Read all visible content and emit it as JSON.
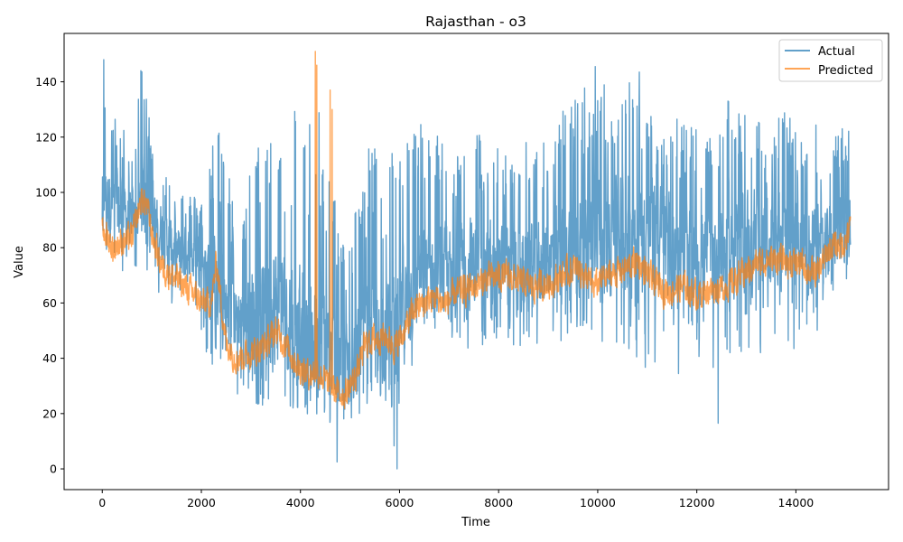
{
  "chart_data": {
    "type": "line",
    "title": "Rajasthan - o3",
    "xlabel": "Time",
    "ylabel": "Value",
    "xlim": [
      -770,
      15870
    ],
    "ylim": [
      -7.5,
      157.5
    ],
    "xticks": [
      0,
      2000,
      4000,
      6000,
      8000,
      10000,
      12000,
      14000
    ],
    "yticks": [
      0,
      20,
      40,
      60,
      80,
      100,
      120,
      140
    ],
    "grid": false,
    "legend_position": "top-right",
    "n_points": 15100,
    "series": [
      {
        "name": "Actual",
        "color": "#1f77b4",
        "opacity": 0.7,
        "x": [
          0,
          100,
          200,
          400,
          600,
          800,
          1000,
          1200,
          1400,
          1600,
          1800,
          2000,
          2200,
          2300,
          2500,
          2700,
          3000,
          3300,
          3500,
          3700,
          3900,
          4100,
          4300,
          4500,
          4700,
          4900,
          5100,
          5300,
          5500,
          5700,
          5900,
          6100,
          6300,
          6500,
          6700,
          6900,
          7200,
          7500,
          7800,
          8100,
          8400,
          8700,
          9000,
          9300,
          9600,
          9900,
          10200,
          10500,
          10800,
          11100,
          11400,
          11700,
          12000,
          12300,
          12600,
          12900,
          13200,
          13500,
          13800,
          14100,
          14400,
          14700,
          15000,
          15100
        ],
        "mid": [
          95,
          98,
          95,
          92,
          90,
          95,
          90,
          86,
          80,
          78,
          76,
          75,
          72,
          60,
          55,
          55,
          56,
          58,
          60,
          57,
          52,
          48,
          45,
          40,
          38,
          38,
          40,
          44,
          46,
          48,
          44,
          58,
          65,
          70,
          72,
          70,
          72,
          74,
          75,
          74,
          73,
          75,
          76,
          78,
          80,
          82,
          84,
          86,
          88,
          84,
          78,
          76,
          74,
          76,
          80,
          82,
          84,
          83,
          82,
          82,
          80,
          82,
          88,
          90
        ],
        "low": [
          76,
          75,
          70,
          70,
          72,
          74,
          68,
          62,
          58,
          55,
          50,
          45,
          38,
          30,
          28,
          25,
          24,
          22,
          22,
          20,
          20,
          18,
          18,
          16,
          10,
          15,
          18,
          20,
          22,
          20,
          5,
          30,
          38,
          42,
          40,
          38,
          40,
          42,
          45,
          44,
          42,
          44,
          46,
          45,
          48,
          45,
          44,
          42,
          40,
          30,
          32,
          35,
          35,
          30,
          40,
          38,
          42,
          40,
          40,
          42,
          48,
          50,
          60,
          70
        ],
        "high": [
          145,
          138,
          128,
          126,
          115,
          144,
          128,
          110,
          105,
          103,
          100,
          97,
          115,
          130,
          120,
          85,
          110,
          125,
          135,
          120,
          135,
          125,
          135,
          120,
          100,
          80,
          95,
          115,
          120,
          110,
          120,
          120,
          125,
          128,
          123,
          120,
          118,
          123,
          120,
          115,
          117,
          120,
          122,
          130,
          138,
          145,
          138,
          140,
          144,
          128,
          133,
          128,
          123,
          119,
          134,
          128,
          132,
          127,
          129,
          124,
          126,
          120,
          125,
          122
        ],
        "extremes": [
          [
            30,
            148
          ],
          [
            780,
            144
          ],
          [
            5950,
            0
          ],
          [
            4740,
            2.5
          ],
          [
            12430,
            16.5
          ],
          [
            9950,
            145.5
          ],
          [
            10840,
            143.5
          ]
        ]
      },
      {
        "name": "Predicted",
        "color": "#ff7f0e",
        "opacity": 0.7,
        "x": [
          0,
          100,
          200,
          400,
          600,
          800,
          900,
          1000,
          1200,
          1400,
          1600,
          1800,
          2000,
          2200,
          2300,
          2500,
          2700,
          3000,
          3300,
          3500,
          3700,
          3900,
          4100,
          4200,
          4300,
          4400,
          4500,
          4700,
          4900,
          5100,
          5300,
          5500,
          5700,
          5900,
          6100,
          6300,
          6500,
          6700,
          6900,
          7200,
          7500,
          7800,
          8100,
          8400,
          8700,
          9000,
          9300,
          9600,
          9900,
          10200,
          10500,
          10800,
          11100,
          11400,
          11700,
          12000,
          12300,
          12600,
          12900,
          13200,
          13500,
          13800,
          14100,
          14400,
          14700,
          15000,
          15100
        ],
        "y": [
          86,
          84,
          80,
          82,
          84,
          98,
          95,
          85,
          73,
          70,
          67,
          64,
          60,
          60,
          75,
          45,
          40,
          42,
          45,
          50,
          45,
          38,
          35,
          34,
          36,
          34,
          32,
          28,
          27,
          33,
          45,
          47,
          48,
          44,
          50,
          58,
          60,
          62,
          60,
          64,
          66,
          69,
          70,
          68,
          66,
          67,
          70,
          73,
          66,
          70,
          72,
          75,
          68,
          64,
          66,
          63,
          65,
          66,
          70,
          74,
          76,
          75,
          74,
          70,
          80,
          82,
          88
        ],
        "spikes": [
          [
            4300,
            151
          ],
          [
            4330,
            146
          ],
          [
            4600,
            137
          ],
          [
            4640,
            130
          ]
        ]
      }
    ]
  }
}
